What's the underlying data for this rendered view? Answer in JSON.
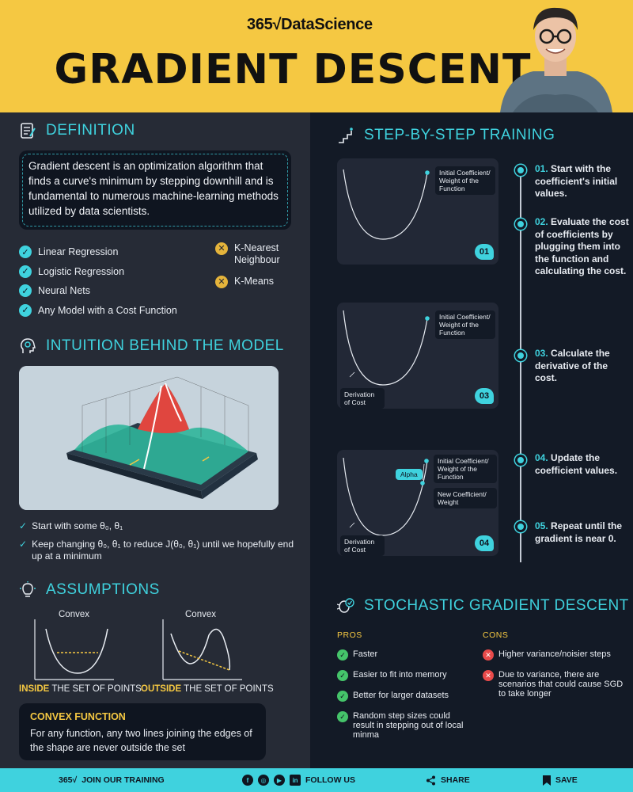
{
  "header": {
    "logo_num": "365",
    "logo_text": "DataScience",
    "title": "GRADIENT DESCENT"
  },
  "definition": {
    "title": "DEFINITION",
    "text": "Gradient descent is an optimization algorithm that finds a curve's minimum by stepping downhill and is fundamental to numerous machine-learning methods utilized by data scientists.",
    "checks": [
      "Linear Regression",
      "Logistic Regression",
      "Neural Nets",
      "Any Model with a Cost Function"
    ],
    "crosses": [
      "K-Nearest Neighbour",
      "K-Means"
    ]
  },
  "intuition": {
    "title": "INTUITION BEHIND THE MODEL",
    "items": [
      "Start with some θ₀, θ₁",
      "Keep changing θ₀, θ₁ to reduce J(θ₀, θ₁) until we hopefully end up at a minimum"
    ]
  },
  "assumptions": {
    "title": "ASSUMPTIONS",
    "left_label": "Convex",
    "right_label": "Convex",
    "inside_hl": "INSIDE",
    "inside_rest": " THE SET OF POINTS",
    "outside_hl": "OUTSIDE",
    "outside_rest": " THE SET OF POINTS",
    "box_title": "CONVEX FUNCTION",
    "box_text": "For any function, any two lines joining the edges of the shape are never outside the set"
  },
  "steps": {
    "title": "STEP-BY-STEP TRAINING",
    "card1": {
      "tip": "Initial Coefficient/ Weight of the Function",
      "num": "01"
    },
    "card2": {
      "tip": "Initial Coefficient/ Weight of the Function",
      "deriv": "Derivation of Cost",
      "num": "03"
    },
    "card3": {
      "tip": "Initial Coefficient/ Weight of the Function",
      "alpha": "Alpha",
      "new": "New Coefficient/ Weight",
      "deriv": "Derivation of Cost",
      "num": "04"
    },
    "list": [
      {
        "n": "01.",
        "t": " Start with the coefficient's initial values."
      },
      {
        "n": "02.",
        "t": " Evaluate the cost of coefficients by plugging them into the function and calculating the cost."
      },
      {
        "n": "03.",
        "t": " Calculate the derivative of the cost."
      },
      {
        "n": "04.",
        "t": " Update the coefficient values."
      },
      {
        "n": "05.",
        "t": " Repeat until the gradient is near 0."
      }
    ]
  },
  "sgd": {
    "title": "STOCHASTIC GRADIENT DESCENT",
    "pros_label": "PROS",
    "cons_label": "CONS",
    "pros": [
      "Faster",
      "Easier to fit into memory",
      "Better for larger datasets",
      "Random step sizes could result in stepping out of local minma"
    ],
    "cons": [
      "Higher variance/noisier steps",
      "Due to variance, there are scenarios that could cause SGD to take longer"
    ]
  },
  "footer": {
    "logo_num": "365",
    "join": "JOIN OUR TRAINING",
    "follow": "FOLLOW US",
    "share": "SHARE",
    "save": "SAVE"
  },
  "colors": {
    "accent": "#3fd2de",
    "yellow": "#f5c842",
    "dark": "#131a26",
    "panel": "#262b36"
  },
  "icons": [
    "definition-icon",
    "lightbulb-head-icon",
    "lightbulb-icon",
    "stairs-icon",
    "bug-check-icon",
    "facebook-icon",
    "instagram-icon",
    "youtube-icon",
    "linkedin-icon",
    "share-icon",
    "bookmark-icon"
  ]
}
